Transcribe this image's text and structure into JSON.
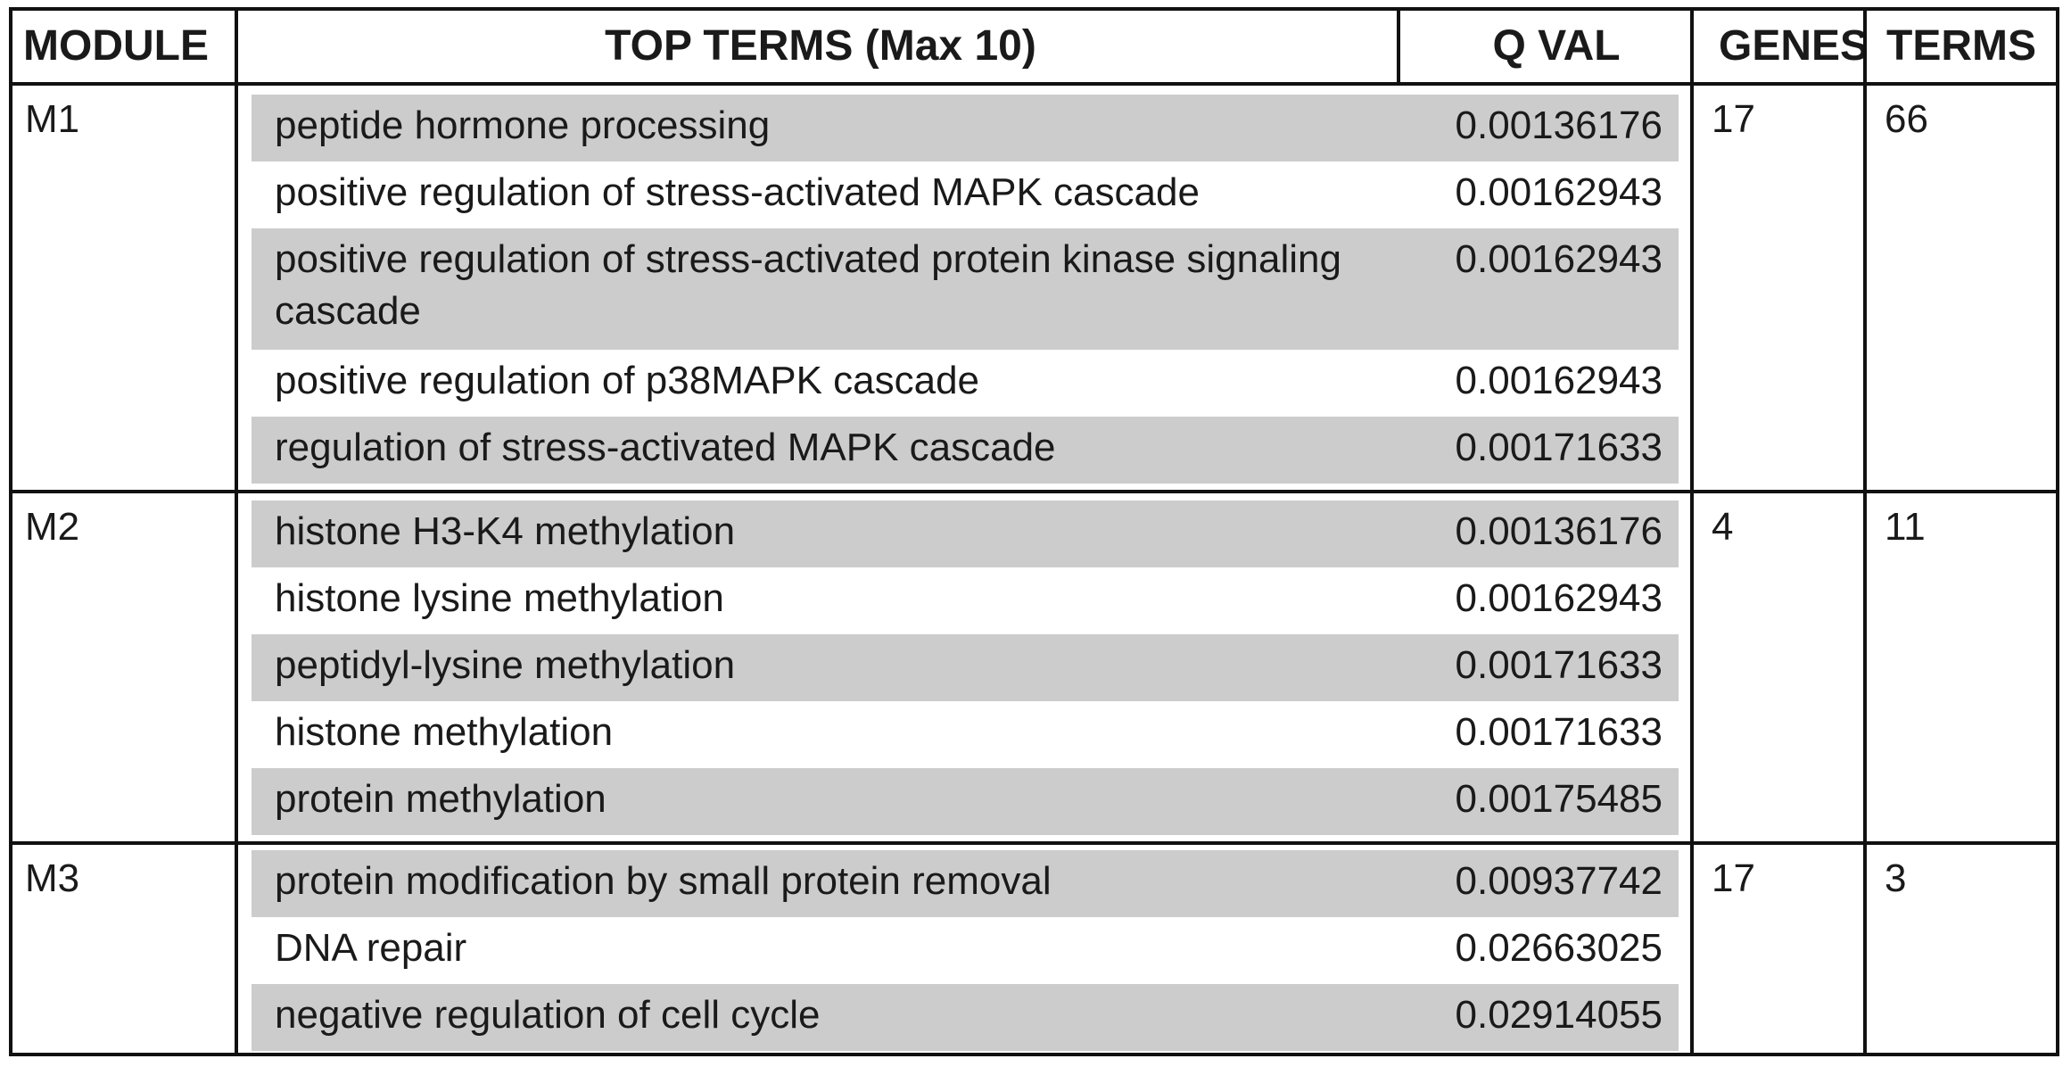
{
  "header": {
    "module": "MODULE",
    "top_terms": "TOP TERMS (Max 10)",
    "q_val": "Q VAL",
    "genes": "GENES",
    "terms": "TERMS"
  },
  "modules": [
    {
      "name": "M1",
      "genes": "17",
      "terms_count": "66",
      "rows": [
        {
          "term": "peptide hormone processing",
          "q": "0.00136176"
        },
        {
          "term": "positive regulation of stress-activated MAPK cascade",
          "q": "0.00162943"
        },
        {
          "term": "positive regulation of stress-activated protein kinase signaling cascade",
          "q": "0.00162943"
        },
        {
          "term": "positive regulation of p38MAPK cascade",
          "q": "0.00162943"
        },
        {
          "term": "regulation of stress-activated MAPK cascade",
          "q": "0.00171633"
        }
      ]
    },
    {
      "name": "M2",
      "genes": "4",
      "terms_count": "11",
      "rows": [
        {
          "term": "histone H3-K4 methylation",
          "q": "0.00136176"
        },
        {
          "term": "histone lysine methylation",
          "q": "0.00162943"
        },
        {
          "term": "peptidyl-lysine methylation",
          "q": "0.00171633"
        },
        {
          "term": "histone methylation",
          "q": "0.00171633"
        },
        {
          "term": "protein methylation",
          "q": "0.00175485"
        }
      ]
    },
    {
      "name": "M3",
      "genes": "17",
      "terms_count": "3",
      "rows": [
        {
          "term": "protein modification by small protein removal",
          "q": "0.00937742"
        },
        {
          "term": "DNA repair",
          "q": "0.02663025"
        },
        {
          "term": "negative regulation of cell cycle",
          "q": "0.02914055"
        }
      ]
    }
  ]
}
